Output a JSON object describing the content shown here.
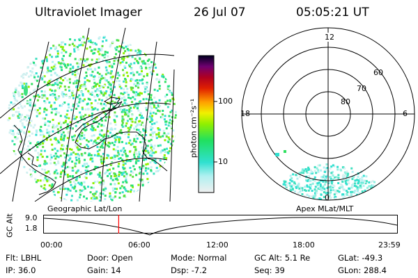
{
  "header": {
    "instrument": "Ultraviolet Imager",
    "date": "26 Jul 07",
    "time": "05:05:21 UT"
  },
  "colorbar": {
    "unit_label": "photon cm⁻²s⁻¹",
    "ticks": [
      "100",
      "10"
    ]
  },
  "polar": {
    "mlt_labels": {
      "top": "12",
      "left": "18",
      "right": "6",
      "bottom": "0"
    },
    "lat_labels": [
      "60",
      "70",
      "80"
    ]
  },
  "projections": {
    "left": "Geographic Lat/Lon",
    "right": "Apex MLat/MLT"
  },
  "altitude_plot": {
    "axis_label": "GC Alt",
    "y_ticks": [
      "9.0",
      "1.8"
    ],
    "x_ticks": [
      "00:00",
      "06:00",
      "12:00",
      "18:00",
      "23:59"
    ],
    "current_time_fraction": 0.2118,
    "marker_color": "#ff0000"
  },
  "info": {
    "row1": [
      {
        "label": "Flt:",
        "value": "LBHL"
      },
      {
        "label": "Door:",
        "value": "Open"
      },
      {
        "label": "Mode:",
        "value": "Normal"
      },
      {
        "label": "GC Alt:",
        "value": "5.1 Re"
      },
      {
        "label": "GLat:",
        "value": "-49.3"
      }
    ],
    "row2": [
      {
        "label": "IP:",
        "value": "36.0"
      },
      {
        "label": "Gain:",
        "value": "14"
      },
      {
        "label": "Dsp:",
        "value": "-7.2"
      },
      {
        "label": "Seq:",
        "value": "39"
      },
      {
        "label": "GLon:",
        "value": "288.4"
      }
    ]
  }
}
